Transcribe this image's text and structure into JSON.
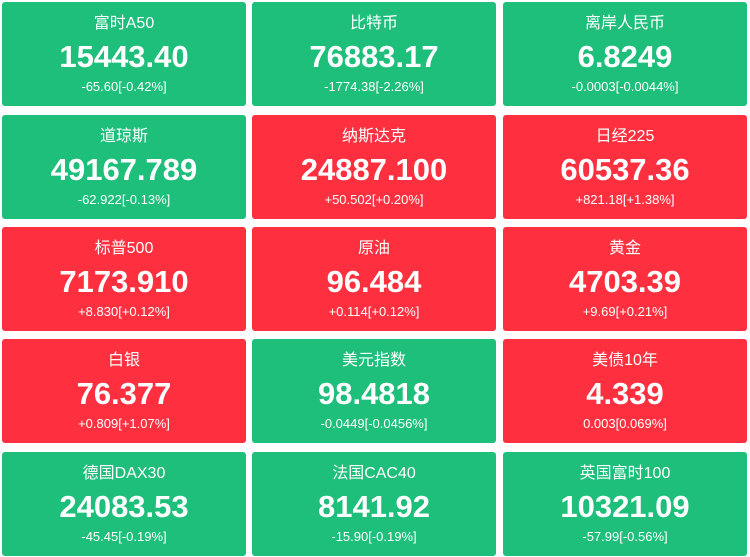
{
  "tiles": [
    {
      "name": "富时A50",
      "price": "15443.40",
      "change": "-65.60[-0.42%]",
      "color": "#1ebf7b"
    },
    {
      "name": "比特币",
      "price": "76883.17",
      "change": "-1774.38[-2.26%]",
      "color": "#1ebf7b"
    },
    {
      "name": "离岸人民币",
      "price": "6.8249",
      "change": "-0.0003[-0.0044%]",
      "color": "#1ebf7b"
    },
    {
      "name": "道琼斯",
      "price": "49167.789",
      "change": "-62.922[-0.13%]",
      "color": "#1ebf7b"
    },
    {
      "name": "纳斯达克",
      "price": "24887.100",
      "change": "+50.502[+0.20%]",
      "color": "#fe303f"
    },
    {
      "name": "日经225",
      "price": "60537.36",
      "change": "+821.18[+1.38%]",
      "color": "#fe303f"
    },
    {
      "name": "标普500",
      "price": "7173.910",
      "change": "+8.830[+0.12%]",
      "color": "#fe303f"
    },
    {
      "name": "原油",
      "price": "96.484",
      "change": "+0.114[+0.12%]",
      "color": "#fe303f"
    },
    {
      "name": "黄金",
      "price": "4703.39",
      "change": "+9.69[+0.21%]",
      "color": "#fe303f"
    },
    {
      "name": "白银",
      "price": "76.377",
      "change": "+0.809[+1.07%]",
      "color": "#fe303f"
    },
    {
      "name": "美元指数",
      "price": "98.4818",
      "change": "-0.0449[-0.0456%]",
      "color": "#1ebf7b"
    },
    {
      "name": "美债10年",
      "price": "4.339",
      "change": "0.003[0.069%]",
      "color": "#fe303f"
    },
    {
      "name": "德国DAX30",
      "price": "24083.53",
      "change": "-45.45[-0.19%]",
      "color": "#1ebf7b"
    },
    {
      "name": "法国CAC40",
      "price": "8141.92",
      "change": "-15.90[-0.19%]",
      "color": "#1ebf7b"
    },
    {
      "name": "英国富时100",
      "price": "10321.09",
      "change": "-57.99[-0.56%]",
      "color": "#1ebf7b"
    }
  ]
}
